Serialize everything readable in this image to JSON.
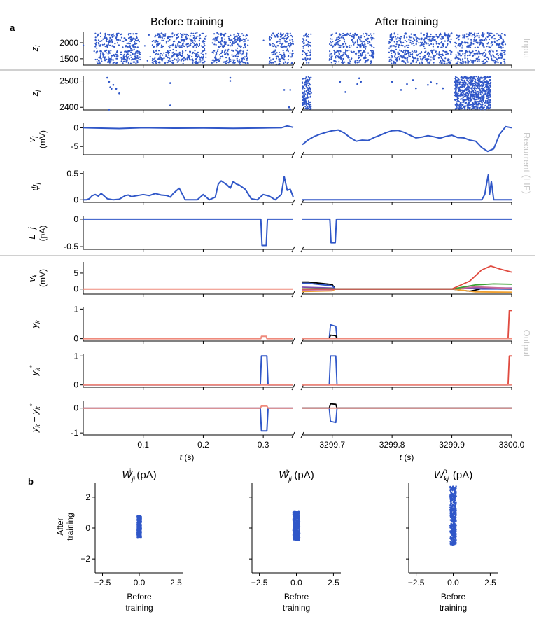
{
  "figure": {
    "panel_labels": [
      "a",
      "b"
    ],
    "titles": [
      "Before training",
      "After training"
    ],
    "group_labels": [
      "Input",
      "Recurrent (LIF)",
      "Output"
    ],
    "xlabel_left": "t (s)",
    "xlabel_right": "t (s)",
    "xticks_left": [
      "0.1",
      "0.2",
      "0.3"
    ],
    "xticks_right": [
      "3299.7",
      "3299.8",
      "3299.9",
      "3300.0"
    ]
  },
  "colors": {
    "blue": "#3057c8",
    "red": "#e04a3f",
    "salmon": "#ef8a7c",
    "black": "#000000",
    "green": "#3ca033",
    "orange": "#f0a030",
    "purple": "#7a4fb0",
    "pink": "#c76a9a",
    "yellow": "#d9b84a",
    "gray_sep": "#c0c0c0"
  },
  "chart_data": [
    {
      "type": "scatter",
      "name": "input-spikes",
      "ylabel": "z_i",
      "yticks": [
        1500,
        2000
      ],
      "ylim": [
        1300,
        2350
      ],
      "xlim_before": [
        0.0,
        0.35
      ],
      "xlim_after": [
        3299.65,
        3300.0
      ],
      "before_bands": [
        [
          0.02,
          0.095
        ],
        [
          0.115,
          0.205
        ],
        [
          0.215,
          0.275
        ],
        [
          0.31,
          0.35
        ]
      ],
      "after_bands": [
        [
          3299.65,
          3299.665
        ],
        [
          3299.695,
          3299.77
        ],
        [
          3299.795,
          3299.9
        ],
        [
          3299.905,
          3299.99
        ]
      ]
    },
    {
      "type": "scatter",
      "name": "recurrent-spikes",
      "ylabel": "z_j",
      "yticks": [
        2400,
        2500
      ],
      "ylim": [
        2390,
        2520
      ],
      "before_points": [
        [
          0.04,
          2512
        ],
        [
          0.043,
          2497
        ],
        [
          0.045,
          2476
        ],
        [
          0.047,
          2470
        ],
        [
          0.05,
          2485
        ],
        [
          0.055,
          2470
        ],
        [
          0.06,
          2453
        ],
        [
          0.043,
          2391
        ],
        [
          0.145,
          2492
        ],
        [
          0.145,
          2407
        ],
        [
          0.245,
          2512
        ],
        [
          0.245,
          2500
        ],
        [
          0.335,
          2466
        ],
        [
          0.345,
          2466
        ],
        [
          0.343,
          2400
        ],
        [
          0.345,
          2393
        ]
      ],
      "after_points": [
        [
          3299.713,
          2497
        ],
        [
          3299.722,
          2458
        ],
        [
          3299.742,
          2488
        ],
        [
          3299.745,
          2510
        ],
        [
          3299.748,
          2497
        ],
        [
          3299.8,
          2497
        ],
        [
          3299.815,
          2466
        ],
        [
          3299.825,
          2488
        ],
        [
          3299.835,
          2503
        ],
        [
          3299.84,
          2472
        ],
        [
          3299.86,
          2485
        ],
        [
          3299.865,
          2495
        ],
        [
          3299.875,
          2490
        ],
        [
          3299.885,
          2472
        ]
      ],
      "after_dense_bands": [
        [
          3299.65,
          3299.665
        ],
        [
          3299.905,
          3299.965
        ]
      ]
    },
    {
      "type": "line",
      "name": "membrane-voltage",
      "ylabel": "v_j",
      "yunit": "(mV)",
      "yticks": [
        -5,
        0
      ],
      "ylim": [
        -7.2,
        1.2
      ],
      "series": [
        {
          "name": "v_j",
          "color": "blue"
        }
      ],
      "before_x": [
        0.0,
        0.03,
        0.06,
        0.1,
        0.15,
        0.2,
        0.25,
        0.3,
        0.33,
        0.34,
        0.35
      ],
      "before_y": [
        0.0,
        -0.1,
        -0.2,
        0.0,
        -0.1,
        -0.05,
        -0.15,
        -0.05,
        0.0,
        0.5,
        0.1
      ],
      "after_x": [
        3299.65,
        3299.66,
        3299.67,
        3299.68,
        3299.69,
        3299.7,
        3299.71,
        3299.72,
        3299.73,
        3299.74,
        3299.75,
        3299.76,
        3299.77,
        3299.78,
        3299.79,
        3299.8,
        3299.81,
        3299.82,
        3299.83,
        3299.84,
        3299.85,
        3299.86,
        3299.87,
        3299.88,
        3299.89,
        3299.9,
        3299.91,
        3299.92,
        3299.93,
        3299.94,
        3299.95,
        3299.96,
        3299.97,
        3299.98,
        3299.99,
        3300.0
      ],
      "after_y": [
        -4.5,
        -3.2,
        -2.3,
        -1.7,
        -1.2,
        -0.8,
        -0.6,
        -1.4,
        -2.6,
        -3.6,
        -3.3,
        -3.4,
        -2.6,
        -2.0,
        -1.3,
        -0.8,
        -0.7,
        -1.2,
        -2.0,
        -2.7,
        -2.5,
        -2.1,
        -2.4,
        -2.8,
        -2.3,
        -2.0,
        -2.6,
        -2.7,
        -3.3,
        -3.6,
        -5.3,
        -6.3,
        -5.6,
        -1.7,
        0.3,
        0.0
      ]
    },
    {
      "type": "line",
      "name": "pseudo-derivative",
      "ylabel": "psi_j",
      "yticks": [
        0.0,
        0.5
      ],
      "ylim": [
        -0.05,
        0.55
      ],
      "series": [
        {
          "name": "psi_j",
          "color": "blue"
        }
      ],
      "before_x": [
        0.0,
        0.005,
        0.01,
        0.015,
        0.02,
        0.025,
        0.03,
        0.04,
        0.05,
        0.06,
        0.07,
        0.075,
        0.08,
        0.09,
        0.1,
        0.11,
        0.12,
        0.13,
        0.14,
        0.145,
        0.15,
        0.16,
        0.17,
        0.18,
        0.19,
        0.2,
        0.21,
        0.22,
        0.225,
        0.23,
        0.24,
        0.245,
        0.25,
        0.255,
        0.26,
        0.27,
        0.28,
        0.29,
        0.3,
        0.31,
        0.32,
        0.33,
        0.335,
        0.34,
        0.345,
        0.35
      ],
      "before_y": [
        0.0,
        0.0,
        0.02,
        0.08,
        0.1,
        0.07,
        0.12,
        0.02,
        0.0,
        0.01,
        0.08,
        0.09,
        0.06,
        0.08,
        0.1,
        0.08,
        0.12,
        0.09,
        0.08,
        0.05,
        0.12,
        0.22,
        0.0,
        0.0,
        0.0,
        0.1,
        0.0,
        0.05,
        0.3,
        0.36,
        0.28,
        0.22,
        0.35,
        0.3,
        0.28,
        0.2,
        0.02,
        0.0,
        0.1,
        0.07,
        0.0,
        0.1,
        0.44,
        0.18,
        0.2,
        0.05
      ],
      "after_x": [
        3299.65,
        3299.9,
        3299.95,
        3299.955,
        3299.958,
        3299.961,
        3299.963,
        3299.966,
        3299.97,
        3300.0
      ],
      "after_y": [
        0.0,
        0.0,
        0.0,
        0.1,
        0.3,
        0.48,
        0.1,
        0.35,
        0.0,
        0.0
      ]
    },
    {
      "type": "line",
      "name": "learning-signal",
      "ylabel": "L_j",
      "yunit": "(pA)",
      "yticks": [
        -0.5,
        0.0
      ],
      "ylim": [
        -0.55,
        0.05
      ],
      "series": [
        {
          "name": "L_j",
          "color": "blue"
        }
      ],
      "before_x": [
        0.0,
        0.296,
        0.298,
        0.305,
        0.307,
        0.35
      ],
      "before_y": [
        0.0,
        0.0,
        -0.48,
        -0.48,
        0.0,
        0.0
      ],
      "after_x": [
        3299.65,
        3299.696,
        3299.698,
        3299.705,
        3299.707,
        3300.0
      ],
      "after_y": [
        0.0,
        0.0,
        -0.43,
        -0.43,
        0.0,
        0.0
      ]
    },
    {
      "type": "line",
      "name": "output-voltage",
      "ylabel": "v_k",
      "yunit": "(mV)",
      "yticks": [
        0,
        5
      ],
      "ylim": [
        -1.6,
        8.5
      ],
      "series": [
        {
          "name": "v_k",
          "color": "salmon"
        }
      ],
      "before_x": [
        0.0,
        0.35
      ],
      "before_y": [
        0.0,
        0.0
      ],
      "after_series": [
        {
          "color": "black",
          "x": [
            3299.65,
            3299.66,
            3299.7,
            3299.705,
            3299.75,
            3299.9,
            3299.93,
            3299.95,
            3300.0
          ],
          "y": [
            2.2,
            2.2,
            1.4,
            0.0,
            0.0,
            0.0,
            -0.7,
            0.1,
            -0.05
          ]
        },
        {
          "color": "blue",
          "x": [
            3299.65,
            3299.66,
            3299.7,
            3299.705,
            3299.75,
            3299.9,
            3299.93,
            3299.95,
            3300.0
          ],
          "y": [
            1.8,
            1.8,
            1.0,
            0.0,
            0.0,
            0.0,
            0.5,
            0.0,
            0.0
          ]
        },
        {
          "color": "orange",
          "x": [
            3299.65,
            3299.7,
            3299.705,
            3299.9,
            3299.94,
            3300.0
          ],
          "y": [
            -0.8,
            -0.6,
            0.0,
            0.0,
            -0.9,
            -1.0
          ]
        },
        {
          "color": "purple",
          "x": [
            3299.65,
            3299.7,
            3299.705,
            3299.9,
            3299.94,
            3300.0
          ],
          "y": [
            0.6,
            0.3,
            0.0,
            0.0,
            0.4,
            0.3
          ]
        },
        {
          "color": "pink",
          "x": [
            3299.65,
            3299.7,
            3299.705,
            3299.9,
            3299.94,
            3300.0
          ],
          "y": [
            -0.3,
            -0.2,
            0.0,
            0.0,
            0.7,
            0.2
          ]
        },
        {
          "color": "green",
          "x": [
            3299.65,
            3299.7,
            3299.705,
            3299.9,
            3299.94,
            3299.97,
            3300.0
          ],
          "y": [
            0.1,
            0.1,
            0.0,
            0.0,
            1.3,
            1.6,
            1.5
          ]
        },
        {
          "color": "red",
          "x": [
            3299.65,
            3299.9,
            3299.93,
            3299.95,
            3299.965,
            3299.98,
            3300.0
          ],
          "y": [
            0.0,
            0.0,
            2.5,
            6.0,
            7.2,
            6.3,
            5.3
          ]
        }
      ]
    },
    {
      "type": "line",
      "name": "output-y",
      "ylabel": "y_k",
      "yticks": [
        0,
        1
      ],
      "ylim": [
        -0.08,
        1.08
      ],
      "series": [
        {
          "name": "y_k",
          "color": "salmon"
        }
      ],
      "before_x": [
        0.0,
        0.296,
        0.297,
        0.305,
        0.306,
        0.35
      ],
      "before_y": [
        0.0,
        0.0,
        0.08,
        0.08,
        0.0,
        0.0
      ],
      "after_series": [
        {
          "color": "blue",
          "x": [
            3299.65,
            3299.695,
            3299.697,
            3299.706,
            3299.708,
            3300.0
          ],
          "y": [
            0.0,
            0.0,
            0.47,
            0.42,
            0.0,
            0.0
          ]
        },
        {
          "color": "black",
          "x": [
            3299.65,
            3299.695,
            3299.697,
            3299.706,
            3299.708,
            3300.0
          ],
          "y": [
            0.0,
            0.0,
            0.12,
            0.1,
            0.0,
            0.0
          ]
        },
        {
          "color": "red",
          "x": [
            3299.65,
            3299.994,
            3299.996,
            3300.0
          ],
          "y": [
            0.0,
            0.0,
            0.95,
            0.95
          ]
        },
        {
          "color": "salmon",
          "x": [
            3299.65,
            3300.0
          ],
          "y": [
            0.0,
            0.0
          ]
        }
      ]
    },
    {
      "type": "line",
      "name": "target-y",
      "ylabel": "y_k*",
      "yticks": [
        0,
        1
      ],
      "ylim": [
        -0.08,
        1.08
      ],
      "series": [
        {
          "name": "y_k*",
          "color": "blue"
        }
      ],
      "before_x": [
        0.0,
        0.295,
        0.297,
        0.306,
        0.308,
        0.35
      ],
      "before_y": [
        0.0,
        0.0,
        1.0,
        1.0,
        0.0,
        0.0
      ],
      "after_series": [
        {
          "color": "blue",
          "x": [
            3299.65,
            3299.695,
            3299.697,
            3299.706,
            3299.708,
            3300.0
          ],
          "y": [
            0.0,
            0.0,
            1.0,
            1.0,
            0.0,
            0.0
          ]
        },
        {
          "color": "red",
          "x": [
            3299.65,
            3299.994,
            3299.996,
            3300.0
          ],
          "y": [
            0.0,
            0.0,
            1.0,
            1.0
          ]
        },
        {
          "color": "salmon",
          "x": [
            3299.65,
            3300.0
          ],
          "y": [
            0.0,
            0.0
          ]
        }
      ]
    },
    {
      "type": "line",
      "name": "error",
      "ylabel": "y_k - y_k*",
      "yticks": [
        -1,
        0
      ],
      "ylim": [
        -1.08,
        0.3
      ],
      "series": [
        {
          "name": "error",
          "color": "blue"
        }
      ],
      "before_x": [
        0.0,
        0.295,
        0.297,
        0.306,
        0.308,
        0.35
      ],
      "before_y": [
        0.0,
        0.0,
        -0.92,
        -0.92,
        0.0,
        0.0
      ],
      "after_series": [
        {
          "color": "blue",
          "x": [
            3299.65,
            3299.695,
            3299.697,
            3299.706,
            3299.708,
            3300.0
          ],
          "y": [
            0.0,
            0.0,
            -0.53,
            -0.58,
            0.0,
            0.0
          ]
        },
        {
          "color": "black",
          "x": [
            3299.65,
            3299.695,
            3299.697,
            3299.706,
            3299.708,
            3300.0
          ],
          "y": [
            0.0,
            0.0,
            0.17,
            0.15,
            0.0,
            0.0
          ]
        },
        {
          "color": "salmon",
          "x": [
            3299.65,
            3300.0
          ],
          "y": [
            0.0,
            0.0
          ]
        }
      ]
    },
    {
      "type": "scatter",
      "name": "W-input",
      "title": "W_ji^i (pA)",
      "xlabel": "Before training",
      "ylabel": "After training",
      "xticks": [
        -2.5,
        0.0,
        2.5
      ],
      "yticks": [
        -2,
        0,
        2
      ],
      "xlim": [
        -3.0,
        3.0
      ],
      "ylim": [
        -2.9,
        2.9
      ],
      "cloud": {
        "x_center": 0.0,
        "x_spread": 0.13,
        "y_min": -0.6,
        "y_max": 0.8
      }
    },
    {
      "type": "scatter",
      "name": "W-recurrent",
      "title": "W_ji^r (pA)",
      "xlabel": "Before training",
      "ylabel": "",
      "xticks": [
        -2.5,
        0.0,
        2.5
      ],
      "yticks": [],
      "xlim": [
        -3.0,
        3.0
      ],
      "ylim": [
        -2.9,
        2.9
      ],
      "cloud": {
        "x_center": 0.0,
        "x_spread": 0.22,
        "y_min": -0.8,
        "y_max": 1.1
      }
    },
    {
      "type": "scatter",
      "name": "W-output",
      "title": "W_kj^o (pA)",
      "xlabel": "Before training",
      "ylabel": "",
      "xticks": [
        -2.5,
        0.0,
        2.5
      ],
      "yticks": [],
      "xlim": [
        -3.0,
        3.0
      ],
      "ylim": [
        -2.9,
        2.9
      ],
      "cloud": {
        "x_center": 0.0,
        "x_spread": 0.2,
        "y_min": -1.1,
        "y_max": 2.7
      }
    }
  ]
}
